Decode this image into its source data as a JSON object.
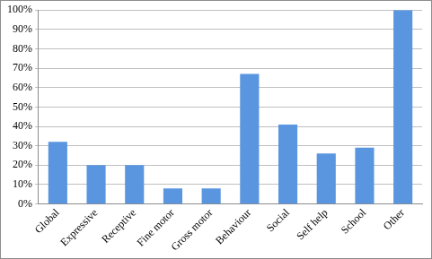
{
  "chart_data": {
    "type": "bar",
    "categories": [
      "Global",
      "Expressive",
      "Receptive",
      "Fine motor",
      "Gross motor",
      "Behaviour",
      "Social",
      "Self help",
      "School",
      "Other"
    ],
    "values": [
      32,
      20,
      20,
      8,
      8,
      67,
      41,
      26,
      29,
      100
    ],
    "color": "#5a96e0",
    "ylim": [
      0,
      100
    ],
    "yticks": [
      {
        "value": 0,
        "label": "0%"
      },
      {
        "value": 10,
        "label": "10%"
      },
      {
        "value": 20,
        "label": "20%"
      },
      {
        "value": 30,
        "label": "30%"
      },
      {
        "value": 40,
        "label": "40%"
      },
      {
        "value": 50,
        "label": "50%"
      },
      {
        "value": 60,
        "label": "60%"
      },
      {
        "value": 70,
        "label": "70%"
      },
      {
        "value": 80,
        "label": "80%"
      },
      {
        "value": 90,
        "label": "90%"
      },
      {
        "value": 100,
        "label": "100%"
      }
    ],
    "grid": true
  }
}
